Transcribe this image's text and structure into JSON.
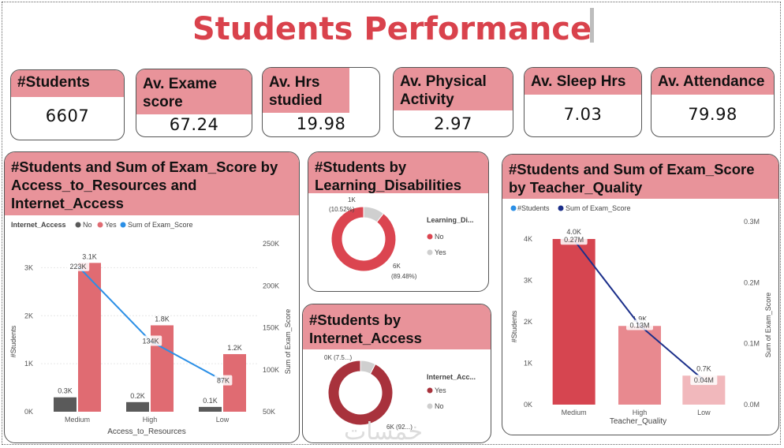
{
  "title": "Students Performance",
  "kpis": [
    {
      "label": "#Students",
      "value": "6607"
    },
    {
      "label": "Av. Exame score",
      "value": "67.24"
    },
    {
      "label": "Av. Hrs studied",
      "value": "19.98"
    },
    {
      "label": "Av. Physical Activity",
      "value": "2.97"
    },
    {
      "label": "Av. Sleep Hrs",
      "value": "7.03"
    },
    {
      "label": "Av. Attendance",
      "value": "79.98"
    }
  ],
  "colors": {
    "accent_title": "#d9424c",
    "header_fill": "#e8939a",
    "bar_no": "#5a5a5a",
    "bar_yes": "#e06b72",
    "line_exam": "#2b8fe6",
    "donut_red": "#db4550",
    "donut_dark": "#a8323c",
    "donut_grey": "#cfcfcf",
    "teacher_line": "#1b2f8a"
  },
  "watermark": "خمسات",
  "chart_data": [
    {
      "id": "access",
      "type": "bar",
      "title": "#Students and Sum of Exam_Score by Access_to_Resources and Internet_Access",
      "legend_title": "Internet_Access",
      "legend": [
        "No",
        "Yes",
        "Sum of Exam_Score"
      ],
      "xlabel": "Access_to_Resources",
      "ylabel": "#Students",
      "y2label": "Sum of Exam_Score",
      "categories": [
        "Medium",
        "High",
        "Low"
      ],
      "series": [
        {
          "name": "No",
          "values": [
            300,
            200,
            100
          ],
          "labels": [
            "0.3K",
            "0.2K",
            "0.1K"
          ]
        },
        {
          "name": "Yes",
          "values": [
            3100,
            1800,
            1200
          ],
          "labels": [
            "3.1K",
            "1.8K",
            "1.2K"
          ]
        }
      ],
      "line": {
        "name": "Sum of Exam_Score",
        "values": [
          223000,
          134000,
          87000
        ],
        "labels": [
          "223K",
          "134K",
          "87K"
        ]
      },
      "ylim": [
        0,
        3500
      ],
      "yticks": [
        "0K",
        "1K",
        "2K",
        "3K"
      ],
      "y2lim": [
        50000,
        250000
      ],
      "y2ticks": [
        "50K",
        "100K",
        "150K",
        "200K",
        "250K"
      ]
    },
    {
      "id": "disabilities",
      "type": "pie",
      "title": "#Students by Learning_Disabilities",
      "legend_title": "Learning_Di...",
      "slices": [
        {
          "name": "No",
          "value": 89.48,
          "label_top": "6K",
          "label_bottom": "(89.48%)"
        },
        {
          "name": "Yes",
          "value": 10.52,
          "label_top": "1K",
          "label_bottom": "(10.52%)"
        }
      ]
    },
    {
      "id": "internet",
      "type": "pie",
      "title": "#Students by Internet_Access",
      "legend_title": "Internet_Acc...",
      "slices": [
        {
          "name": "Yes",
          "value": 92.4,
          "label": "6K (92...)"
        },
        {
          "name": "No",
          "value": 7.6,
          "label": "0K (7.5...)"
        }
      ]
    },
    {
      "id": "teacher",
      "type": "bar",
      "title": "#Students and Sum of Exam_Score by Teacher_Quality",
      "legend": [
        "#Students",
        "Sum of Exam_Score"
      ],
      "xlabel": "Teacher_Quality",
      "ylabel": "#Students",
      "y2label": "Sum of Exam_Score",
      "categories": [
        "Medium",
        "High",
        "Low"
      ],
      "values": [
        4000,
        1900,
        700
      ],
      "labels": [
        "4.0K",
        "1.9K",
        "0.7K"
      ],
      "line": {
        "name": "Sum of Exam_Score",
        "values": [
          270000,
          130000,
          40000
        ],
        "labels": [
          "0.27M",
          "0.13M",
          "0.04M"
        ]
      },
      "ylim": [
        0,
        4000
      ],
      "yticks": [
        "0K",
        "1K",
        "2K",
        "3K",
        "4K"
      ],
      "y2lim": [
        0,
        300000
      ],
      "y2ticks": [
        "0.0M",
        "0.1M",
        "0.2M",
        "0.3M"
      ]
    }
  ]
}
